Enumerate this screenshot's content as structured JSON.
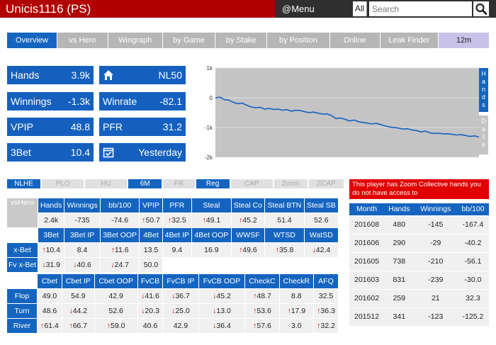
{
  "header": {
    "title": "Unicis1116 (PS)",
    "menu_label": "@Menu",
    "search_scope": "All",
    "search_placeholder": "Search"
  },
  "tabs": [
    {
      "label": "Overview",
      "active": true
    },
    {
      "label": "vs Hero"
    },
    {
      "label": "Wingraph"
    },
    {
      "label": "by Game"
    },
    {
      "label": "by Stake"
    },
    {
      "label": "by Position"
    },
    {
      "label": "Online"
    },
    {
      "label": "Leak Finder"
    },
    {
      "label": "12m"
    }
  ],
  "stats": {
    "hands": {
      "label": "Hands",
      "value": "3.9k"
    },
    "home": {
      "value": "NL50"
    },
    "winnings": {
      "label": "Winnings",
      "value": "-1.3k"
    },
    "winrate": {
      "label": "Winrate",
      "value": "-82.1"
    },
    "vpip": {
      "label": "VPIP",
      "value": "48.8"
    },
    "pfr": {
      "label": "PFR",
      "value": "31.2"
    },
    "threebet": {
      "label": "3Bet",
      "value": "10.4"
    },
    "lastseen": {
      "value": "Yesterday"
    }
  },
  "chart_data": {
    "type": "line",
    "y_ticks": [
      "1k",
      "0",
      "-1k",
      "-2k"
    ],
    "ylim": [
      -2000,
      1000
    ],
    "grid": true,
    "series": [
      {
        "values": [
          0,
          20,
          -60,
          -80,
          -150,
          -200,
          -180,
          -250,
          -310,
          -330,
          -320,
          -380,
          -360,
          -390,
          -380,
          -420,
          -400,
          -450,
          -420,
          -430,
          -470,
          -500,
          -480,
          -520,
          -550,
          -540,
          -600,
          -700,
          -680,
          -720,
          -780,
          -750,
          -800,
          -830,
          -850,
          -880,
          -860,
          -900,
          -950,
          -980,
          -1000,
          -1020,
          -1050,
          -1040,
          -1080,
          -1100,
          -1150,
          -1120,
          -1180,
          -1200,
          -1190,
          -1220,
          -1210,
          -1230,
          -1250,
          -1240,
          -1270,
          -1300,
          -1280,
          -1320
        ]
      }
    ],
    "side_labels": [
      "Hands",
      "Date"
    ],
    "color": "#1560bf"
  },
  "filters": [
    {
      "label": "NLHE",
      "on": true
    },
    {
      "label": "PLO",
      "on": false
    },
    {
      "label": "HU",
      "on": false
    },
    {
      "label": "6M",
      "on": true
    },
    {
      "label": "FR",
      "on": false
    },
    {
      "label": "Reg",
      "on": true
    },
    {
      "label": "CAP",
      "on": false
    },
    {
      "label": "Zoom",
      "on": false
    },
    {
      "label": "ZCAP",
      "on": false
    }
  ],
  "table1": {
    "corner": "vsHero",
    "headers": [
      "Hands",
      "Winnings",
      "bb/100",
      "VPIP",
      "PFR",
      "Steal",
      "Steal Co",
      "Steal BTN",
      "Steal SB"
    ],
    "values": [
      {
        "v": "2.4k"
      },
      {
        "v": "-735"
      },
      {
        "v": "-74.6"
      },
      {
        "v": "50.7",
        "a": "up"
      },
      {
        "v": "32.5",
        "a": "up"
      },
      {
        "v": "49.1",
        "a": "up"
      },
      {
        "v": "45.2",
        "a": "up"
      },
      {
        "v": "51.4"
      },
      {
        "v": "52.6"
      }
    ],
    "headers2": [
      "3Bet",
      "3Bet IP",
      "3Bet OOP",
      "4Bet",
      "4Bet IP",
      "4Bet OOP",
      "WWSF",
      "WTSD",
      "WatSD"
    ],
    "rows": [
      {
        "label": "x-Bet",
        "cells": [
          {
            "v": "10.4",
            "a": "up"
          },
          {
            "v": "8.4"
          },
          {
            "v": "11.6",
            "a": "up"
          },
          {
            "v": "13.5"
          },
          {
            "v": "9.4"
          },
          {
            "v": "16.9"
          },
          {
            "v": "49.6",
            "a": "up"
          },
          {
            "v": "35.8",
            "a": "up"
          },
          {
            "v": "42.4",
            "a": "dn"
          }
        ]
      },
      {
        "label": "Fv x-Bet",
        "cells": [
          {
            "v": "31.9",
            "a": "dn"
          },
          {
            "v": "40.6",
            "a": "dn"
          },
          {
            "v": "24.7",
            "a": "dn"
          },
          {
            "v": "50.0"
          },
          {
            "v": ""
          },
          {
            "v": ""
          },
          {
            "v": ""
          },
          {
            "v": ""
          },
          {
            "v": ""
          }
        ]
      }
    ]
  },
  "table2": {
    "headers": [
      "Cbet",
      "Cbet IP",
      "Cbet OOP",
      "FvCB",
      "FvCB IP",
      "FvCB OOP",
      "CheckC",
      "CheckR",
      "AFQ"
    ],
    "rows": [
      {
        "label": "Flop",
        "cells": [
          {
            "v": "49.0"
          },
          {
            "v": "54.9"
          },
          {
            "v": "42.9"
          },
          {
            "v": "41.6",
            "a": "dn"
          },
          {
            "v": "36.7",
            "a": "dn"
          },
          {
            "v": "45.2",
            "a": "dn"
          },
          {
            "v": "48.7",
            "a": "up"
          },
          {
            "v": "8.8"
          },
          {
            "v": "32.5"
          }
        ]
      },
      {
        "label": "Turn",
        "cells": [
          {
            "v": "48.6"
          },
          {
            "v": "44.2",
            "a": "dn"
          },
          {
            "v": "52.6"
          },
          {
            "v": "20.3",
            "a": "dn"
          },
          {
            "v": "25.0",
            "a": "dn"
          },
          {
            "v": "13.0",
            "a": "dn"
          },
          {
            "v": "53.6",
            "a": "up"
          },
          {
            "v": "17.9",
            "a": "up"
          },
          {
            "v": "36.3",
            "a": "up"
          }
        ]
      },
      {
        "label": "River",
        "cells": [
          {
            "v": "61.4",
            "a": "up"
          },
          {
            "v": "66.7",
            "a": "up"
          },
          {
            "v": "59.0",
            "a": "up"
          },
          {
            "v": "40.6"
          },
          {
            "v": "42.9"
          },
          {
            "v": "36.4",
            "a": "dn"
          },
          {
            "v": "57.6",
            "a": "up"
          },
          {
            "v": "3.0"
          },
          {
            "v": "32.2",
            "a": "up"
          }
        ]
      }
    ]
  },
  "zoom_notice": "This player has Zoom Collective hands you do not have access to",
  "months": {
    "headers": [
      "Month",
      "Hands",
      "Winnings",
      "bb/100"
    ],
    "rows": [
      [
        "201608",
        "480",
        "-145",
        "-167.4"
      ],
      [
        "201606",
        "290",
        "-29",
        "-40.2"
      ],
      [
        "201605",
        "738",
        "-210",
        "-56.1"
      ],
      [
        "201603",
        "831",
        "-239",
        "-30.0"
      ],
      [
        "201602",
        "259",
        "21",
        "32.3"
      ],
      [
        "201512",
        "341",
        "-123",
        "-125.2"
      ]
    ]
  }
}
